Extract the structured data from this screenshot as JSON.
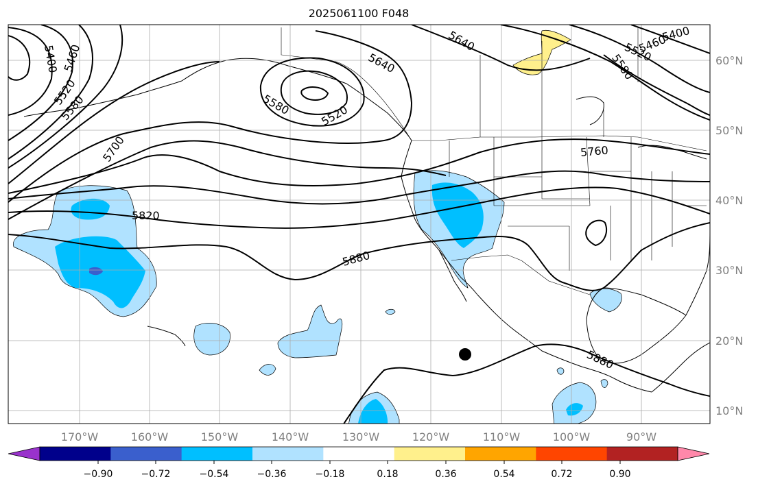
{
  "title": "2025061100 F048",
  "lat_labels": [
    "60°N",
    "50°N",
    "40°N",
    "30°N",
    "20°N",
    "10°N"
  ],
  "lon_labels": [
    "170°W",
    "160°W",
    "150°W",
    "140°W",
    "130°W",
    "120°W",
    "110°W",
    "100°W",
    "90°W"
  ],
  "contour_labels": [
    "5400",
    "5460",
    "5520",
    "5580",
    "5700",
    "5580",
    "5520",
    "5640",
    "5640",
    "5460",
    "5520",
    "5580",
    "5400",
    "5760",
    "5820",
    "5880",
    "5880"
  ],
  "colorbar": {
    "colors": [
      "#9932cc",
      "#00008b",
      "#3a5fcd",
      "#00bfff",
      "#b0e2ff",
      "#ffffff",
      "#fff08c",
      "#ffa500",
      "#ff4500",
      "#b22222",
      "#ff88aa"
    ],
    "tick_labels": [
      "−0.90",
      "−0.72",
      "−0.54",
      "−0.36",
      "−0.18",
      "0.18",
      "0.36",
      "0.54",
      "0.72",
      "0.90"
    ]
  }
}
